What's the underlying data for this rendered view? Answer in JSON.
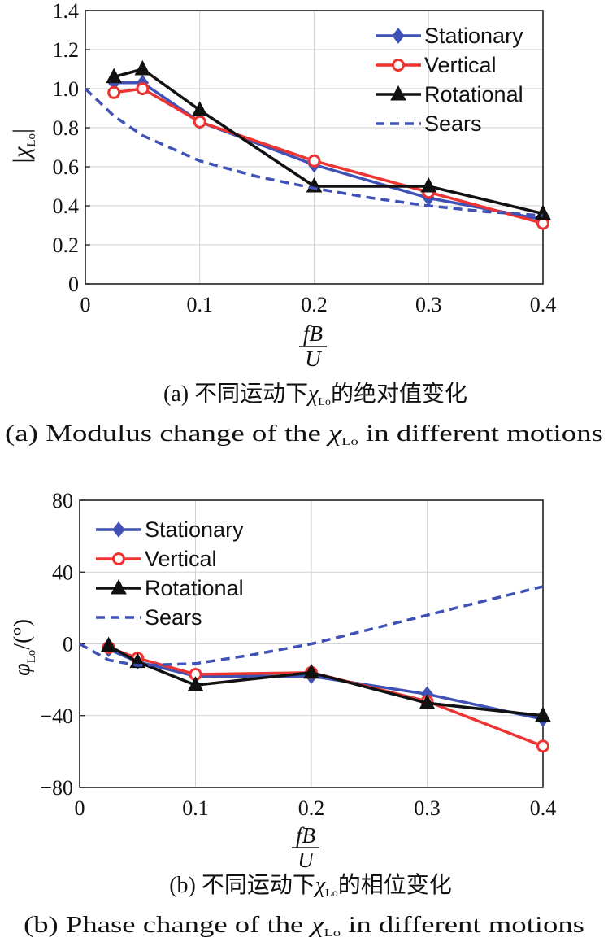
{
  "colors": {
    "stationary": "#3f51b5",
    "vertical": "#ee3333",
    "rotational": "#111111",
    "sears": "#3f51b5"
  },
  "chart_data": [
    {
      "type": "line",
      "xlabel_top": "fB",
      "xlabel_bottom": "U",
      "ylabel_main": "|χ",
      "ylabel_sub": "Lo",
      "ylabel_end": "|",
      "xlim": [
        0,
        0.4
      ],
      "ylim": [
        0,
        1.4
      ],
      "xticks": [
        "0",
        "0.1",
        "0.2",
        "0.3",
        "0.4"
      ],
      "yticks": [
        "0",
        "0.2",
        "0.4",
        "0.6",
        "0.8",
        "1.0",
        "1.2",
        "1.4"
      ],
      "grid": true,
      "legend": "top-right",
      "series": [
        {
          "name": "Stationary",
          "marker": "diamond",
          "x": [
            0.025,
            0.05,
            0.1,
            0.2,
            0.3,
            0.4
          ],
          "values": [
            1.03,
            1.03,
            0.83,
            0.61,
            0.44,
            0.33
          ]
        },
        {
          "name": "Vertical",
          "marker": "circle",
          "x": [
            0.025,
            0.05,
            0.1,
            0.2,
            0.3,
            0.4
          ],
          "values": [
            0.98,
            1.0,
            0.83,
            0.63,
            0.47,
            0.31
          ]
        },
        {
          "name": "Rotational",
          "marker": "triangle",
          "x": [
            0.025,
            0.05,
            0.1,
            0.2,
            0.3,
            0.4
          ],
          "values": [
            1.06,
            1.1,
            0.89,
            0.5,
            0.5,
            0.36
          ]
        },
        {
          "name": "Sears",
          "marker": "dashed",
          "x": [
            0,
            0.025,
            0.05,
            0.1,
            0.15,
            0.2,
            0.25,
            0.3,
            0.35,
            0.4
          ],
          "values": [
            1.0,
            0.86,
            0.76,
            0.63,
            0.55,
            0.49,
            0.44,
            0.4,
            0.37,
            0.35
          ]
        }
      ],
      "caption_cn_pre": "(a) 不同运动下",
      "caption_cn_post": "的绝对值变化",
      "caption_en_pre": "(a) Modulus change of the ",
      "caption_en_post": " in different motions"
    },
    {
      "type": "line",
      "xlabel_top": "fB",
      "xlabel_bottom": "U",
      "ylabel_main": "φ",
      "ylabel_sub": "Lo",
      "ylabel_end": "/(°)",
      "xlim": [
        0,
        0.4
      ],
      "ylim": [
        -80,
        80
      ],
      "xticks": [
        "0",
        "0.1",
        "0.2",
        "0.3",
        "0.4"
      ],
      "yticks": [
        "−80",
        "−40",
        "0",
        "40",
        "80"
      ],
      "grid": true,
      "legend": "top-left",
      "series": [
        {
          "name": "Stationary",
          "marker": "diamond",
          "x": [
            0.025,
            0.05,
            0.1,
            0.2,
            0.3,
            0.4
          ],
          "values": [
            -3,
            -10,
            -18,
            -18,
            -28,
            -42
          ]
        },
        {
          "name": "Vertical",
          "marker": "circle",
          "x": [
            0.025,
            0.05,
            0.1,
            0.2,
            0.3,
            0.4
          ],
          "values": [
            -2,
            -8,
            -17,
            -16,
            -32,
            -57
          ]
        },
        {
          "name": "Rotational",
          "marker": "triangle",
          "x": [
            0.025,
            0.05,
            0.1,
            0.2,
            0.3,
            0.4
          ],
          "values": [
            -1,
            -10,
            -23,
            -16,
            -33,
            -40
          ]
        },
        {
          "name": "Sears",
          "marker": "dashed",
          "x": [
            0,
            0.025,
            0.05,
            0.1,
            0.15,
            0.2,
            0.25,
            0.3,
            0.35,
            0.4
          ],
          "values": [
            0,
            -9,
            -12,
            -11,
            -6,
            0,
            8,
            16,
            24,
            32
          ]
        }
      ],
      "caption_cn_pre": "(b) 不同运动下",
      "caption_cn_post": "的相位变化",
      "caption_en_pre": "(b) Phase change of the ",
      "caption_en_post": " in different motions"
    }
  ],
  "symbol": {
    "main": "χ",
    "sub": "Lo"
  }
}
